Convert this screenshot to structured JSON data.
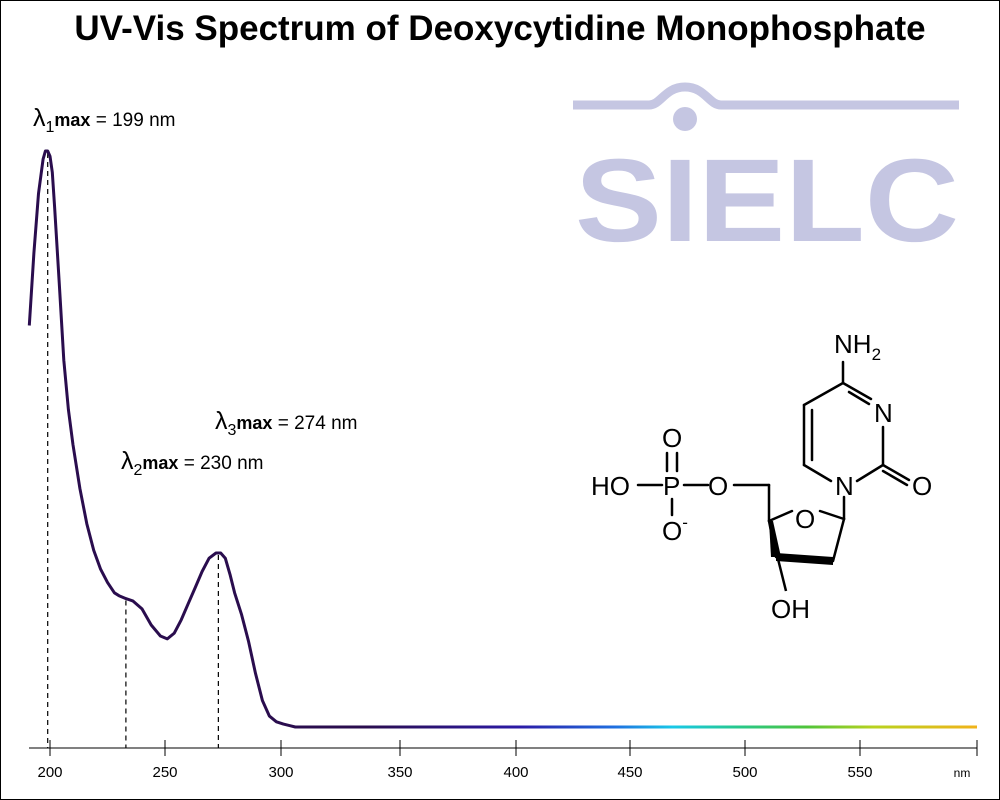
{
  "chart_data": {
    "type": "line",
    "title": "UV-Vis Spectrum of Deoxycytidine Monophosphate",
    "xlabel": "nm",
    "ylabel": "",
    "xlim": [
      190,
      1000
    ],
    "ylim": [
      0,
      1.0
    ],
    "xticks": [
      200,
      250,
      300,
      350,
      400,
      450,
      500,
      550
    ],
    "xtick_labels": [
      "200",
      "250",
      "300",
      "350",
      "400",
      "450",
      "500",
      "550"
    ],
    "grid": false,
    "legend": "none",
    "series": [
      {
        "x": [
          191,
          193,
          195,
          197,
          198,
          199,
          200,
          201,
          202,
          204,
          206,
          208,
          210,
          213,
          216,
          219,
          222,
          225,
          228,
          230,
          233,
          236,
          240,
          244,
          248,
          251,
          254,
          257,
          260,
          263,
          266,
          269,
          272,
          274,
          276,
          278,
          280,
          283,
          286,
          289,
          292,
          295,
          298,
          301,
          304,
          306,
          310,
          320,
          350,
          400,
          450,
          500,
          550,
          600,
          650,
          700,
          1000
        ],
        "y": [
          0.697,
          0.823,
          0.926,
          0.986,
          1.0,
          1.0,
          0.991,
          0.963,
          0.903,
          0.772,
          0.637,
          0.551,
          0.49,
          0.414,
          0.353,
          0.307,
          0.274,
          0.251,
          0.233,
          0.228,
          0.223,
          0.219,
          0.205,
          0.177,
          0.158,
          0.153,
          0.163,
          0.186,
          0.214,
          0.242,
          0.27,
          0.293,
          0.302,
          0.302,
          0.293,
          0.265,
          0.233,
          0.195,
          0.149,
          0.093,
          0.046,
          0.019,
          0.009,
          0.005,
          0.002,
          0.0,
          0.0,
          0.0,
          0.0,
          0.0,
          0.0,
          0.0,
          0.0,
          0.0,
          0.0,
          0.0,
          0.0
        ]
      }
    ],
    "peaks": [
      {
        "sub": "1",
        "max": "max",
        "value": " = 199 nm",
        "x": 199
      },
      {
        "sub": "2",
        "max": "max",
        "value": " = 230 nm",
        "x": 233
      },
      {
        "sub": "3",
        "max": "max",
        "value": " = 274 nm",
        "x": 273
      }
    ]
  },
  "logo": {
    "text": "SIELC"
  },
  "molecule": {
    "nh": "NH",
    "nh_sub": "2",
    "n_ring": "N",
    "n_glyc": "N",
    "o_carbonyl": "O",
    "o_ring": "O",
    "oh_sugar": "OH",
    "ho": "HO",
    "p": "P",
    "o_link": "O",
    "o_top": "O",
    "o_minus": "O",
    "minus": "-"
  }
}
